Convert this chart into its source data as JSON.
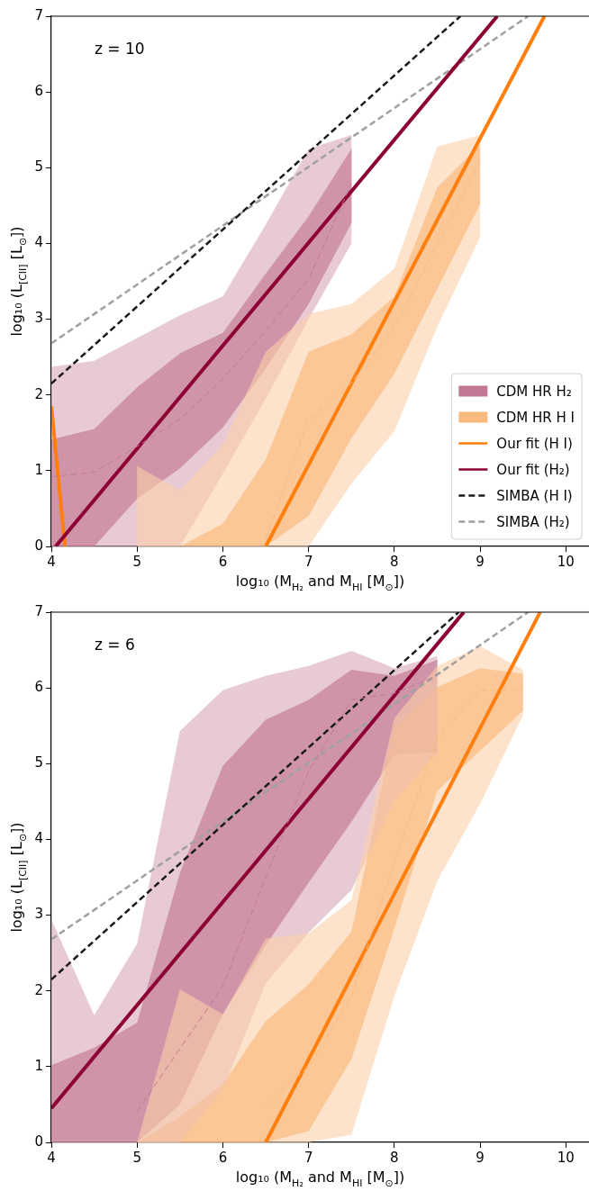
{
  "chart_data": [
    {
      "type": "line",
      "xlabel": "log₁₀ (M$_{H₂}$ and M$_{HI}$ [M$_{⊙}$])",
      "ylabel": "log₁₀ (L$_{[CII]}$ [L$_{⊙}$])",
      "annotations": [
        "z = 10"
      ],
      "xlim": [
        4,
        10.27
      ],
      "ylim": [
        0,
        7
      ],
      "xticks": [
        4,
        5,
        6,
        7,
        8,
        9,
        10
      ],
      "yticks": [
        0,
        1,
        2,
        3,
        4,
        5,
        6,
        7
      ],
      "grid": false,
      "legend": "bottom right",
      "series": [
        {
          "name": "CDM HR H₂",
          "color": "#c27894",
          "line_style": "dashed",
          "x": [
            4,
            4.5,
            5,
            5.5,
            6,
            6.5,
            7,
            7.5
          ],
          "values": [
            0.92,
            0.98,
            1.32,
            1.68,
            2.21,
            2.85,
            3.53,
            4.79
          ],
          "lower": [
            0,
            0,
            0.63,
            1.03,
            1.57,
            2.35,
            3.2,
            4.27
          ],
          "upper": [
            1.41,
            1.55,
            2.1,
            2.55,
            2.82,
            3.6,
            4.36,
            5.25
          ]
        },
        {
          "name": "CDM HR H I",
          "color": "#fab97c",
          "line_style": "dashed",
          "x": [
            5,
            5.5,
            6,
            6.5,
            7,
            7.5,
            8,
            8.5,
            9
          ],
          "values": [
            null,
            null,
            null,
            0.1,
            1.68,
            2.16,
            2.89,
            4.0,
            5.08
          ],
          "lower": [
            0,
            0,
            0,
            0,
            0.4,
            1.43,
            2.28,
            3.4,
            4.52
          ],
          "upper": [
            0,
            0,
            0.3,
            1.15,
            2.57,
            2.8,
            3.3,
            4.74,
            5.3
          ]
        },
        {
          "name": "Our fit (H I)",
          "color": "#ff7f0e",
          "line_style": "solid",
          "x": [
            6.5,
            9.75
          ],
          "values": [
            0,
            7
          ]
        },
        {
          "name": "Our fit (H₂)",
          "color": "#8c0034",
          "line_style": "solid",
          "x": [
            4.05,
            9.2
          ],
          "values": [
            0,
            7
          ]
        },
        {
          "name": "SIMBA (H I)",
          "color": "#1a1a1a",
          "line_style": "dashed",
          "x": [
            4,
            8.77
          ],
          "values": [
            2.15,
            7
          ]
        },
        {
          "name": "SIMBA (H₂)",
          "color": "#a0a0a0",
          "line_style": "dashed",
          "x": [
            4,
            9.56
          ],
          "values": [
            2.68,
            7
          ]
        },
        {
          "color": "#e8cad4",
          "x": [
            4,
            4.5,
            5,
            5.5,
            6,
            6.5,
            7,
            7.5
          ],
          "values": [
            null,
            null,
            null,
            null,
            null,
            null,
            null,
            null
          ],
          "lower": [
            0,
            0,
            0,
            0,
            0.96,
            1.95,
            3.0,
            4.0
          ],
          "upper": [
            2.37,
            2.45,
            2.75,
            3.05,
            3.3,
            4.25,
            5.25,
            5.43
          ]
        },
        {
          "color": "#fde3cb",
          "x": [
            5,
            5.5,
            6,
            6.5,
            7,
            7.5,
            8,
            8.5,
            9
          ],
          "values": [
            null,
            null,
            null,
            null,
            null,
            null,
            null,
            null,
            null
          ],
          "lower": [
            0,
            0,
            0,
            0,
            0,
            0.83,
            1.52,
            2.9,
            4.08
          ],
          "upper": [
            1.06,
            0.74,
            1.35,
            2.57,
            3.07,
            3.2,
            3.67,
            5.28,
            5.43
          ]
        },
        {
          "color": "#ff7f0e",
          "line_style": "solid",
          "x": [
            4,
            4.16
          ],
          "values": [
            1.85,
            0
          ]
        }
      ]
    },
    {
      "type": "line",
      "xlabel": "log₁₀ (M$_{H₂}$ and M$_{HI}$ [M$_{⊙}$])",
      "ylabel": "log₁₀ (L$_{[CII]}$ [L$_{⊙}$])",
      "annotations": [
        "z = 6"
      ],
      "xlim": [
        4,
        10.27
      ],
      "ylim": [
        0,
        7
      ],
      "xticks": [
        4,
        5,
        6,
        7,
        8,
        9,
        10
      ],
      "yticks": [
        0,
        1,
        2,
        3,
        4,
        5,
        6,
        7
      ],
      "grid": false,
      "legend": false,
      "series": [
        {
          "color": "#c27894",
          "line_style": "dashed",
          "x": [
            4,
            4.5,
            5,
            5.5,
            6,
            6.5,
            7,
            7.5,
            8,
            8.5
          ],
          "values": [
            null,
            null,
            0.41,
            1.24,
            2.06,
            3.5,
            4.9,
            5.84,
            5.93,
            6.16
          ],
          "lower": [
            0,
            0,
            0,
            0.5,
            1.69,
            2.6,
            3.43,
            4.23,
            5.12,
            5.15
          ],
          "upper": [
            1.02,
            1.25,
            1.58,
            3.56,
            4.97,
            5.58,
            5.84,
            6.24,
            6.16,
            6.37
          ]
        },
        {
          "color": "#fab97c",
          "line_style": "dashed",
          "x": [
            5,
            5.5,
            6,
            6.5,
            7,
            7.5,
            8,
            8.5,
            9,
            9.5
          ],
          "values": [
            null,
            null,
            null,
            0.51,
            1.0,
            1.93,
            3.7,
            5.33,
            5.96,
            5.98
          ],
          "lower": [
            0,
            0,
            0,
            0,
            0.15,
            1.1,
            2.82,
            4.64,
            5.17,
            5.7
          ],
          "upper": [
            0,
            0.34,
            0.77,
            1.6,
            2.09,
            2.78,
            5.48,
            6.01,
            6.26,
            6.19
          ]
        },
        {
          "color": "#ff7f0e",
          "line_style": "solid",
          "x": [
            6.5,
            9.7
          ],
          "values": [
            0,
            7
          ]
        },
        {
          "color": "#8c0034",
          "line_style": "solid",
          "x": [
            4,
            8.81
          ],
          "values": [
            0.45,
            7
          ]
        },
        {
          "color": "#1a1a1a",
          "line_style": "dashed",
          "x": [
            4,
            8.75
          ],
          "values": [
            2.15,
            7
          ]
        },
        {
          "color": "#a0a0a0",
          "line_style": "dashed",
          "x": [
            4,
            9.56
          ],
          "values": [
            2.68,
            7
          ]
        },
        {
          "color": "#e8cad4",
          "x": [
            4,
            4.5,
            5,
            5.5,
            6,
            6.5,
            7,
            7.5,
            8,
            8.5
          ],
          "values": [
            null,
            null,
            null,
            null,
            null,
            null,
            null,
            null,
            null,
            null
          ],
          "lower": [
            0,
            0,
            0,
            0,
            0.7,
            2.1,
            2.77,
            3.33,
            4.5,
            5.15
          ],
          "upper": [
            2.94,
            1.68,
            2.62,
            5.43,
            5.97,
            6.16,
            6.29,
            6.49,
            6.26,
            6.42
          ]
        },
        {
          "color": "#fde3cb",
          "x": [
            5,
            5.5,
            6,
            6.5,
            7,
            7.5,
            8,
            8.5,
            9,
            9.5
          ],
          "values": [
            null,
            null,
            null,
            null,
            null,
            null,
            null,
            null,
            null,
            null
          ],
          "lower": [
            0,
            0,
            0,
            0,
            0,
            0.1,
            1.93,
            3.45,
            4.47,
            5.64
          ],
          "upper": [
            0,
            2.02,
            1.69,
            2.69,
            2.76,
            3.2,
            5.6,
            6.29,
            6.55,
            6.24
          ]
        }
      ]
    }
  ]
}
